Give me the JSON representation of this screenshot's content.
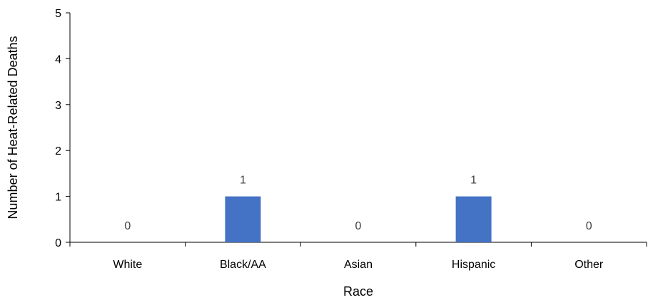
{
  "chart_data": {
    "type": "bar",
    "categories": [
      "White",
      "Black/AA",
      "Asian",
      "Hispanic",
      "Other"
    ],
    "values": [
      0,
      1,
      0,
      1,
      0
    ],
    "data_labels": [
      "0",
      "1",
      "0",
      "1",
      "0"
    ],
    "title": "",
    "xlabel": "Race",
    "ylabel": "Number of Heat-Related Deaths",
    "ylim": [
      0,
      5
    ],
    "yticks": [
      0,
      1,
      2,
      3,
      4,
      5
    ],
    "grid": false,
    "legend": "none",
    "bar_color": "#4472C4",
    "label_color": "#404040"
  }
}
